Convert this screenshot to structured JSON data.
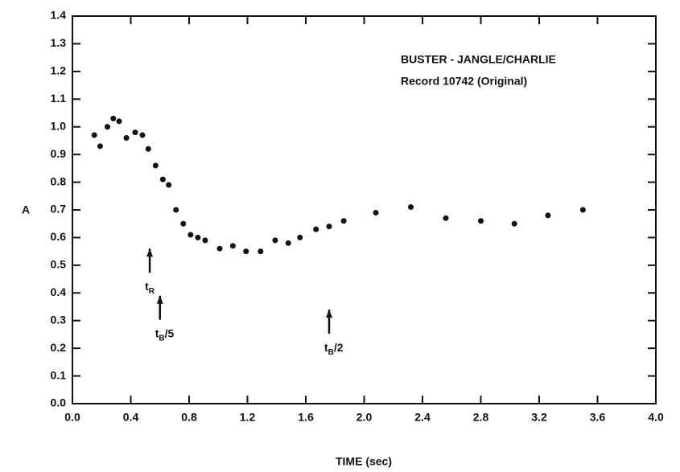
{
  "chart_data": {
    "type": "scatter",
    "annotation_lines": [
      "BUSTER - JANGLE/CHARLIE",
      "Record 10742 (Original)"
    ],
    "xlabel": "TIME (sec)",
    "ylabel": "A",
    "x": [
      0.15,
      0.19,
      0.24,
      0.28,
      0.32,
      0.37,
      0.43,
      0.48,
      0.52,
      0.57,
      0.62,
      0.66,
      0.71,
      0.76,
      0.81,
      0.86,
      0.91,
      1.01,
      1.1,
      1.19,
      1.29,
      1.39,
      1.48,
      1.56,
      1.67,
      1.76,
      1.86,
      2.08,
      2.32,
      2.56,
      2.8,
      3.03,
      3.26,
      3.5
    ],
    "values": [
      0.97,
      0.93,
      1.0,
      1.03,
      1.02,
      0.96,
      0.98,
      0.97,
      0.92,
      0.86,
      0.81,
      0.79,
      0.7,
      0.65,
      0.61,
      0.6,
      0.59,
      0.56,
      0.57,
      0.55,
      0.55,
      0.59,
      0.58,
      0.6,
      0.63,
      0.64,
      0.66,
      0.69,
      0.71,
      0.67,
      0.66,
      0.65,
      0.68,
      0.7
    ],
    "color": "#111111",
    "xlim": [
      0,
      4
    ],
    "xticks": [
      {
        "value": 0,
        "label": "0.0"
      },
      0.4,
      0.8,
      1.2,
      1.6,
      {
        "value": 2,
        "label": "2.0"
      },
      2.4,
      2.8,
      3.2,
      3.6,
      {
        "value": 4,
        "label": "4.0"
      }
    ],
    "ylim": [
      0,
      1.4
    ],
    "yticks": [
      {
        "value": 0,
        "label": "0.0"
      },
      0.1,
      0.2,
      0.3,
      0.4,
      0.5,
      0.6,
      0.7,
      0.8,
      0.9,
      {
        "value": 1,
        "label": "1.0"
      },
      1.1,
      1.2,
      1.3,
      1.4
    ],
    "arrows": [
      {
        "x": 0.53,
        "y": 0.56,
        "text": "t",
        "subscript": "R"
      },
      {
        "x": 0.6,
        "y": 0.39,
        "text": "t",
        "subscript": "B",
        "after": "/5"
      },
      {
        "x": 1.76,
        "y": 0.34,
        "text": "t",
        "subscript": "B",
        "after": "/2"
      }
    ]
  }
}
